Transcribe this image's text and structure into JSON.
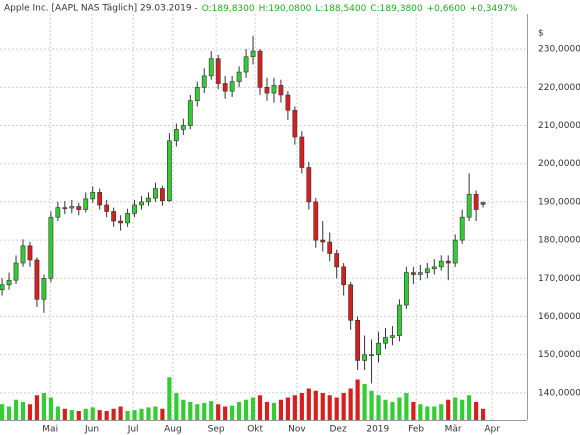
{
  "header": {
    "title": "Apple Inc. [AAPL NAS Täglich] 29.03.2019 -",
    "quote": [
      "O:189,8300",
      "H:190,0800",
      "L:188,5400",
      "C:189,3800",
      "+0,6600",
      "+0,3497%"
    ],
    "currency": "$"
  },
  "chart_data": {
    "type": "candlestick",
    "up_color": "#33cc33",
    "down_color": "#d62020",
    "grid": true,
    "xlim": [
      -0.3,
      75.3
    ],
    "ylim": [
      132.9,
      239.2
    ],
    "xticks": [
      {
        "value": 6.9,
        "label": "Mai"
      },
      {
        "value": 12.9,
        "label": "Jun"
      },
      {
        "value": 18.8,
        "label": "Jul"
      },
      {
        "value": 24.5,
        "label": "Aug"
      },
      {
        "value": 30.7,
        "label": "Sep"
      },
      {
        "value": 36.3,
        "label": "Okt"
      },
      {
        "value": 42.3,
        "label": "Nov"
      },
      {
        "value": 48.2,
        "label": "Dez"
      },
      {
        "value": 53.9,
        "label": "2019"
      },
      {
        "value": 59.4,
        "label": "Feb"
      },
      {
        "value": 64.7,
        "label": "Mär"
      },
      {
        "value": 70.3,
        "label": "Apr"
      }
    ],
    "yticks": [
      {
        "value": 140,
        "label": "140,0000"
      },
      {
        "value": 150,
        "label": "150,0000"
      },
      {
        "value": 160,
        "label": "160,0000"
      },
      {
        "value": 170,
        "label": "170,0000"
      },
      {
        "value": 180,
        "label": "180,0000"
      },
      {
        "value": 190,
        "label": "190,0000"
      },
      {
        "value": 200,
        "label": "200,0000"
      },
      {
        "value": 210,
        "label": "210,0000"
      },
      {
        "value": 220,
        "label": "220,0000"
      },
      {
        "value": 230,
        "label": "230,0000"
      }
    ],
    "open": [
      167,
      168.3,
      169.5,
      174,
      178.5,
      174.8,
      164.5,
      170,
      186,
      188.5,
      188.4,
      188.8,
      188,
      190.8,
      192.5,
      189.2,
      187.5,
      185,
      184.5,
      187,
      189.2,
      190,
      191,
      193.5,
      190.3,
      206,
      209,
      210,
      216.5,
      220,
      223,
      227.5,
      221,
      219,
      221.5,
      224,
      228,
      229.5,
      220,
      218.5,
      220.5,
      218,
      214,
      207,
      199,
      190,
      180,
      179.5,
      176.5,
      173,
      168.3,
      159,
      148.5,
      150,
      150,
      153,
      154.5,
      155,
      163,
      171.5,
      171,
      171.5,
      172.5,
      173,
      174.5,
      174,
      180,
      186,
      192,
      189.83
    ],
    "high": [
      170,
      171.5,
      176,
      180.2,
      179.5,
      175.5,
      171,
      187.5,
      190,
      190.2,
      190.5,
      189.8,
      192.5,
      194,
      193.5,
      190.5,
      188.5,
      186.5,
      188.2,
      190.5,
      191.5,
      192.5,
      195,
      194.2,
      208,
      210.5,
      211.8,
      218,
      221.5,
      225,
      229.5,
      228.5,
      223,
      223,
      225.5,
      230,
      233.5,
      230,
      222.5,
      222.5,
      222,
      219,
      215,
      208.5,
      200.5,
      191,
      185,
      182,
      177.5,
      174,
      169,
      160,
      155,
      154,
      156,
      157,
      157.5,
      164.5,
      173,
      173,
      173.5,
      174,
      175,
      176,
      176,
      181.5,
      188,
      197.5,
      193,
      190.08
    ],
    "low": [
      165.5,
      167,
      168.5,
      173,
      173,
      162.5,
      161,
      169,
      185,
      186.8,
      187,
      186.5,
      187.2,
      189.8,
      188,
      186,
      183.5,
      182.5,
      183.5,
      186,
      188,
      189,
      190,
      189,
      190,
      204.5,
      207.5,
      209,
      215,
      218.5,
      222,
      219.5,
      217,
      217.5,
      220,
      222.5,
      226,
      218,
      216.5,
      216,
      216,
      211.5,
      205,
      197.5,
      188,
      178,
      177,
      174.5,
      170,
      165.5,
      156.5,
      146,
      146,
      142.5,
      148,
      151.5,
      152.5,
      153.5,
      162,
      168.5,
      169.5,
      170,
      171,
      172,
      169.5,
      173,
      179,
      185,
      185,
      188.54
    ],
    "close": [
      168.3,
      169.5,
      174,
      178.5,
      174.8,
      164.5,
      170,
      186,
      188.5,
      188.4,
      188.8,
      188,
      190.8,
      192.5,
      189.2,
      187.5,
      185,
      184.5,
      187,
      189.2,
      190,
      191,
      193.5,
      190.3,
      206,
      209,
      210,
      216.5,
      220,
      223,
      227.5,
      221,
      219,
      221.5,
      224,
      228,
      229.5,
      220,
      218.5,
      220.5,
      218,
      214,
      207,
      199,
      190,
      180,
      179.5,
      176.5,
      173,
      168.3,
      159,
      148.5,
      150,
      150,
      153,
      154.5,
      155,
      163,
      171.5,
      171,
      171.5,
      172.5,
      173,
      174.5,
      174,
      180,
      186,
      192,
      188,
      189.38
    ],
    "volume": [
      35,
      30,
      45,
      40,
      35,
      55,
      60,
      50,
      30,
      25,
      22,
      20,
      25,
      28,
      22,
      20,
      25,
      30,
      20,
      22,
      25,
      28,
      30,
      25,
      95,
      60,
      45,
      40,
      35,
      38,
      42,
      35,
      30,
      32,
      40,
      45,
      50,
      55,
      40,
      38,
      45,
      50,
      55,
      60,
      70,
      65,
      60,
      55,
      50,
      60,
      70,
      90,
      80,
      65,
      55,
      45,
      40,
      50,
      60,
      40,
      35,
      30,
      30,
      35,
      45,
      50,
      45,
      55,
      40,
      25
    ]
  }
}
